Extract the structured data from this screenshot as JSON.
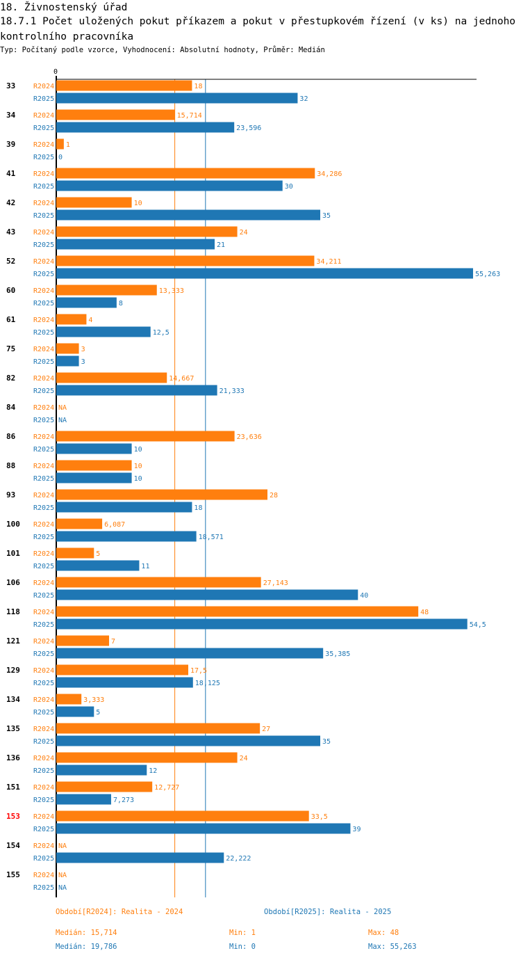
{
  "header": {
    "title": "18. Živnostenský úřad",
    "subtitle": "18.7.1 Počet uložených pokut příkazem a pokut v přestupkovém řízení (v ks) na jednoho kontrolního pracovníka",
    "info": "Typ: Počítaný podle vzorce, Vyhodnocení: Absolutní hodnoty, Průměr: Medián"
  },
  "colors": {
    "r2024": "#ff7f0e",
    "r2025": "#1f77b4",
    "highlight": "#ff0000",
    "axis": "#000000"
  },
  "chart_data": {
    "type": "bar",
    "orientation": "horizontal",
    "title": "18.7.1 Počet uložených pokut příkazem a pokut v přestupkovém řízení (v ks) na jednoho kontrolního pracovníka",
    "axis_zero_label": "0",
    "xlim": [
      0,
      55.263
    ],
    "highlight_category": "153",
    "categories": [
      "33",
      "34",
      "39",
      "41",
      "42",
      "43",
      "52",
      "60",
      "61",
      "75",
      "82",
      "84",
      "86",
      "88",
      "93",
      "100",
      "101",
      "106",
      "118",
      "121",
      "129",
      "134",
      "135",
      "136",
      "151",
      "153",
      "154",
      "155"
    ],
    "series": [
      {
        "name": "R2024",
        "values": [
          18,
          15.714,
          1,
          34.286,
          10,
          24,
          34.211,
          13.333,
          4,
          3,
          14.667,
          null,
          23.636,
          10,
          28,
          6.087,
          5,
          27.143,
          48,
          7,
          17.5,
          3.333,
          27,
          24,
          12.727,
          33.5,
          null,
          null
        ],
        "labels": [
          "18",
          "15,714",
          "1",
          "34,286",
          "10",
          "24",
          "34,211",
          "13,333",
          "4",
          "3",
          "14,667",
          "NA",
          "23,636",
          "10",
          "28",
          "6,087",
          "5",
          "27,143",
          "48",
          "7",
          "17,5",
          "3,333",
          "27",
          "24",
          "12,727",
          "33,5",
          "NA",
          "NA"
        ]
      },
      {
        "name": "R2025",
        "values": [
          32,
          23.596,
          0,
          30,
          35,
          21,
          55.263,
          8,
          12.5,
          3,
          21.333,
          null,
          10,
          10,
          18,
          18.571,
          11,
          40,
          54.5,
          35.385,
          18.125,
          5,
          35,
          12,
          7.273,
          39,
          22.222,
          null
        ],
        "labels": [
          "32",
          "23,596",
          "0",
          "30",
          "35",
          "21",
          "55,263",
          "8",
          "12,5",
          "3",
          "21,333",
          "NA",
          "10",
          "10",
          "18",
          "18,571",
          "11",
          "40",
          "54,5",
          "35,385",
          "18,125",
          "5",
          "35",
          "12",
          "7,273",
          "39",
          "22,222",
          "NA"
        ]
      }
    ],
    "medians": {
      "R2024": 15.714,
      "R2025": 19.786
    }
  },
  "legend": {
    "r2024": "Období[R2024]: Realita - 2024",
    "r2025": "Období[R2025]: Realita - 2025"
  },
  "stats": {
    "r2024": {
      "median": "Medián: 15,714",
      "min": "Min: 1",
      "max": "Max: 48"
    },
    "r2025": {
      "median": "Medián: 19,786",
      "min": "Min: 0",
      "max": "Max: 55,263"
    }
  }
}
